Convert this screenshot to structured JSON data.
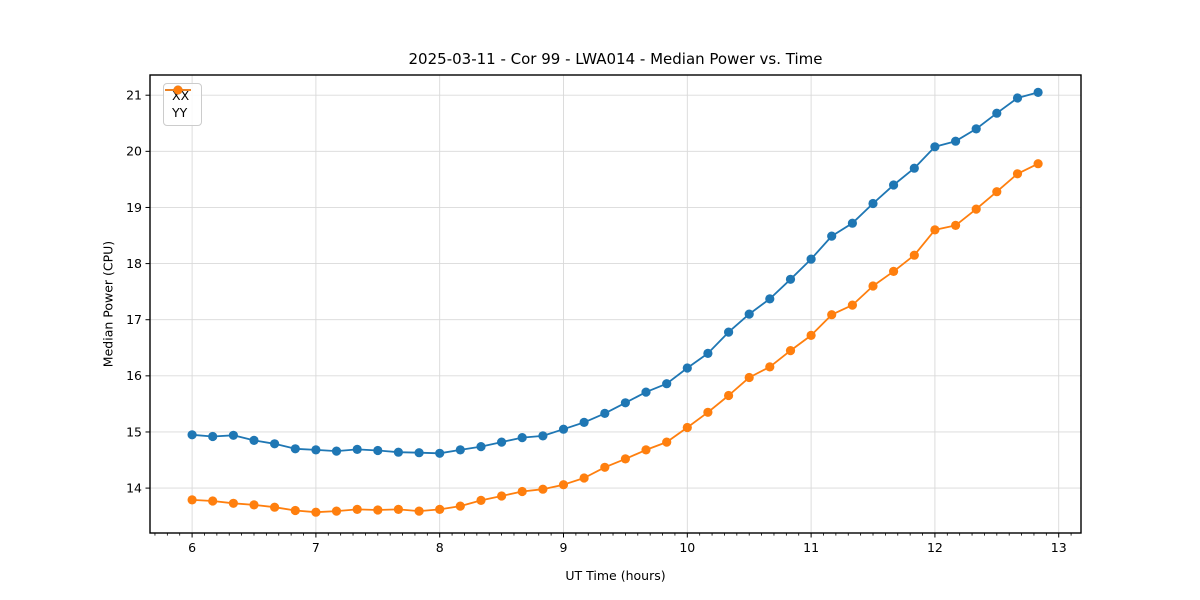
{
  "page": {
    "background": "#ffffff"
  },
  "chart_data": {
    "type": "line",
    "title": "2025-03-11 - Cor 99 - LWA014 - Median Power vs. Time",
    "xlabel": "UT Time (hours)",
    "ylabel": "Median Power (CPU)",
    "xlim": [
      5.66,
      13.18
    ],
    "ylim": [
      13.2,
      21.36
    ],
    "x_ticks": [
      6,
      7,
      8,
      9,
      10,
      11,
      12,
      13
    ],
    "y_ticks": [
      14,
      15,
      16,
      17,
      18,
      19,
      20,
      21
    ],
    "x_minor_tick_interval": 0.1,
    "grid": true,
    "legend_position": "upper-left",
    "marker": "circle",
    "x": [
      6.0,
      6.1667,
      6.3333,
      6.5,
      6.6667,
      6.8333,
      7.0,
      7.1667,
      7.3333,
      7.5,
      7.6667,
      7.8333,
      8.0,
      8.1667,
      8.3333,
      8.5,
      8.6667,
      8.8333,
      9.0,
      9.1667,
      9.3333,
      9.5,
      9.6667,
      9.8333,
      10.0,
      10.1667,
      10.3333,
      10.5,
      10.6667,
      10.8333,
      11.0,
      11.1667,
      11.3333,
      11.5,
      11.6667,
      11.8333,
      12.0,
      12.1667,
      12.3333,
      12.5,
      12.6667,
      12.8333
    ],
    "series": [
      {
        "name": "XX",
        "color": "#1f77b4",
        "values": [
          14.95,
          14.92,
          14.94,
          14.85,
          14.79,
          14.7,
          14.68,
          14.66,
          14.69,
          14.67,
          14.64,
          14.63,
          14.62,
          14.68,
          14.74,
          14.82,
          14.9,
          14.93,
          15.05,
          15.17,
          15.33,
          15.52,
          15.71,
          15.86,
          16.14,
          16.4,
          16.78,
          17.1,
          17.37,
          17.72,
          18.08,
          18.49,
          18.72,
          19.07,
          19.4,
          19.7,
          20.08,
          20.18,
          20.4,
          20.68,
          20.95,
          21.05
        ]
      },
      {
        "name": "YY",
        "color": "#ff7f0e",
        "values": [
          13.79,
          13.77,
          13.73,
          13.7,
          13.66,
          13.6,
          13.57,
          13.59,
          13.62,
          13.61,
          13.62,
          13.59,
          13.62,
          13.68,
          13.78,
          13.86,
          13.94,
          13.98,
          14.06,
          14.18,
          14.37,
          14.52,
          14.68,
          14.82,
          15.08,
          15.35,
          15.65,
          15.97,
          16.16,
          16.45,
          16.72,
          17.09,
          17.26,
          17.6,
          17.86,
          18.15,
          18.6,
          18.68,
          18.97,
          19.28,
          19.6,
          19.78
        ]
      }
    ]
  }
}
